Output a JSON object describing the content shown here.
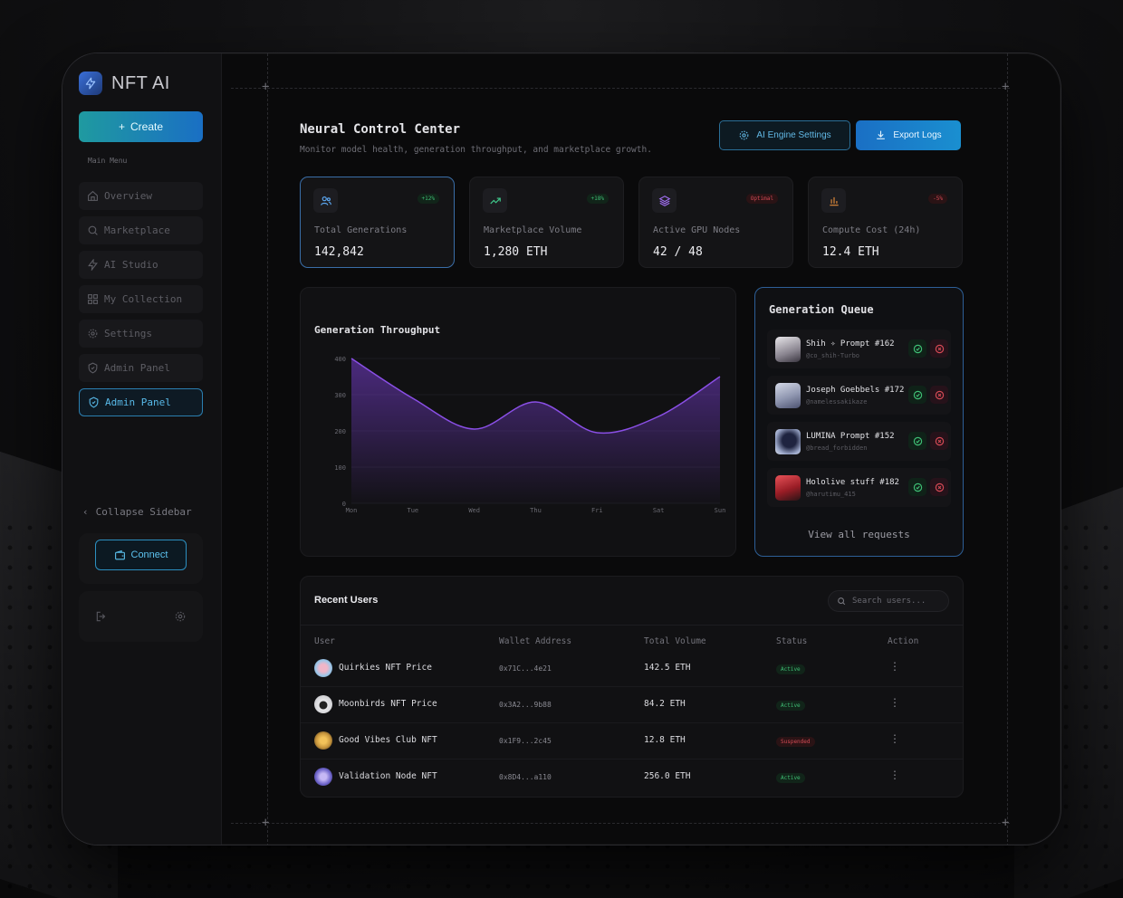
{
  "brand": {
    "name": "NFT AI"
  },
  "sidebar": {
    "create_label": "Create",
    "menu_label": "Main Menu",
    "items": [
      {
        "label": "Overview",
        "icon": "home-icon"
      },
      {
        "label": "Marketplace",
        "icon": "search-icon"
      },
      {
        "label": "AI Studio",
        "icon": "bolt-icon"
      },
      {
        "label": "My Collection",
        "icon": "grid-icon"
      },
      {
        "label": "Settings",
        "icon": "gear-icon"
      },
      {
        "label": "Admin Panel",
        "icon": "shield-icon"
      },
      {
        "label": "Admin Panel",
        "icon": "shield-icon",
        "active": true
      }
    ],
    "collapse_label": "Collapse Sidebar",
    "connect_label": "Connect"
  },
  "header": {
    "title": "Neural Control Center",
    "subtitle": "Monitor model health, generation throughput, and marketplace growth.",
    "settings_button": "AI Engine Settings",
    "export_button": "Export Logs"
  },
  "stats": [
    {
      "label": "Total Generations",
      "value": "142,842",
      "badge": "+12%",
      "badge_tone": "green",
      "icon": "users-icon"
    },
    {
      "label": "Marketplace Volume",
      "value": "1,280 ETH",
      "badge": "+18%",
      "badge_tone": "green",
      "icon": "trending-up-icon"
    },
    {
      "label": "Active GPU Nodes",
      "value": "42 / 48",
      "badge": "Optimal",
      "badge_tone": "red",
      "icon": "layers-icon"
    },
    {
      "label": "Compute Cost (24h)",
      "value": "12.4 ETH",
      "badge": "-5%",
      "badge_tone": "red",
      "icon": "bar-chart-icon"
    }
  ],
  "chart_data": {
    "type": "area",
    "title": "Generation Throughput",
    "categories": [
      "Mon",
      "Tue",
      "Wed",
      "Thu",
      "Fri",
      "Sat",
      "Sun"
    ],
    "series": [
      {
        "values": [
          400,
          290,
          205,
          280,
          195,
          240,
          350
        ]
      }
    ],
    "yticks": [
      "0",
      "100",
      "200",
      "300",
      "400"
    ],
    "ylim": [
      0,
      400
    ],
    "color": "#7b3fd6",
    "grid": true
  },
  "queue": {
    "title": "Generation Queue",
    "items": [
      {
        "name": "Shih ✧ Prompt #162",
        "user": "@co_shih-Turbo",
        "avatar_color": "#c9c4cc"
      },
      {
        "name": "Joseph Goebbels #172",
        "user": "@namelessakikaze",
        "avatar_color": "#b7bcd0"
      },
      {
        "name": "LUMINA Prompt #152",
        "user": "@bread_forbidden",
        "avatar_color": "#2f3552"
      },
      {
        "name": "Hololive stuff #182",
        "user": "@harutimu_415",
        "avatar_color": "#c8343a"
      }
    ],
    "view_all": "View all requests"
  },
  "users": {
    "title": "Recent Users",
    "search_placeholder": "Search users...",
    "columns": [
      "User",
      "Wallet Address",
      "Total Volume",
      "Status",
      "Action"
    ],
    "rows": [
      {
        "user": "Quirkies NFT Price",
        "wallet": "0x71C...4e21",
        "volume": "142.5 ETH",
        "status": "Active",
        "tone": "green",
        "avatar_color": "#9fc7e8"
      },
      {
        "user": "Moonbirds NFT Price",
        "wallet": "0x3A2...9b88",
        "volume": "84.2 ETH",
        "status": "Active",
        "tone": "green",
        "avatar_color": "#e8e8ea"
      },
      {
        "user": "Good Vibes Club NFT",
        "wallet": "0x1F9...2c45",
        "volume": "12.8 ETH",
        "status": "Suspended",
        "tone": "red",
        "avatar_color": "#c9973e"
      },
      {
        "user": "Validation Node NFT",
        "wallet": "0x8D4...a110",
        "volume": "256.0 ETH",
        "status": "Active",
        "tone": "green",
        "avatar_color": "#6c63c9"
      }
    ]
  }
}
